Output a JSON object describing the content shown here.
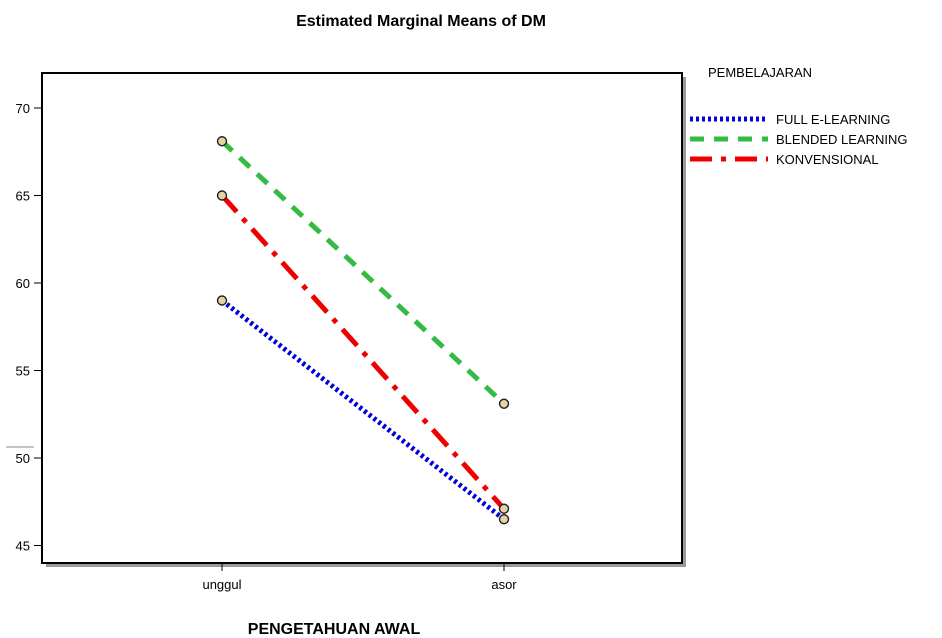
{
  "chart_data": {
    "type": "line",
    "title": "Estimated Marginal Means of DM",
    "xlabel": "PENGETAHUAN AWAL",
    "ylabel": "",
    "categories": [
      "unggul",
      "asor"
    ],
    "ylim": [
      44,
      72
    ],
    "yticks": [
      45,
      50,
      55,
      60,
      65,
      70
    ],
    "grid": false,
    "legend": {
      "title": "PEMBELAJARAN",
      "placement": "right"
    },
    "series": [
      {
        "name": "FULL E-LEARNING",
        "values": [
          59.0,
          46.5
        ],
        "color": "#0000dd",
        "style": "dotted"
      },
      {
        "name": "BLENDED LEARNING",
        "values": [
          68.1,
          53.1
        ],
        "color": "#33bb44",
        "style": "dashed"
      },
      {
        "name": "KONVENSIONAL",
        "values": [
          65.0,
          47.1
        ],
        "color": "#ee0000",
        "style": "dashdot"
      }
    ],
    "marker_color": "#e6d3a3"
  }
}
